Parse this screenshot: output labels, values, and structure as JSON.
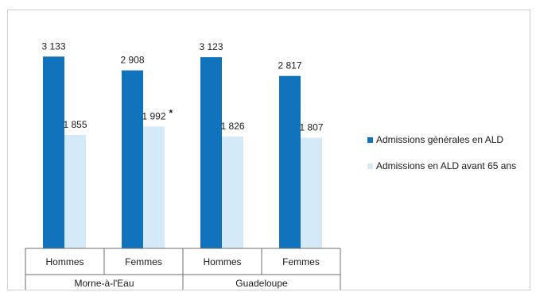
{
  "chart_data": {
    "type": "bar",
    "categories": [
      "Hommes",
      "Femmes",
      "Hommes",
      "Femmes"
    ],
    "groups": [
      {
        "label": "Morne-à-l'Eau",
        "categories": [
          "Hommes",
          "Femmes"
        ]
      },
      {
        "label": "Guadeloupe",
        "categories": [
          "Hommes",
          "Femmes"
        ]
      }
    ],
    "series": [
      {
        "name": "Admissions générales en ALD",
        "color": "#1273bd",
        "values": [
          3133,
          2908,
          3123,
          2817
        ],
        "labels": [
          "3 133",
          "2 908",
          "3 123",
          "2 817"
        ],
        "marks": [
          "",
          "",
          "",
          ""
        ]
      },
      {
        "name": "Admissions en ALD avant 65 ans",
        "color": "#d5eaf8",
        "values": [
          1855,
          1992,
          1826,
          1807
        ],
        "labels": [
          "1 855",
          "1 992",
          "1 826",
          "1 807"
        ],
        "marks": [
          "",
          "*",
          "",
          ""
        ]
      }
    ],
    "ylim": [
      0,
      3500
    ],
    "grid": false,
    "legend_position": "right"
  }
}
